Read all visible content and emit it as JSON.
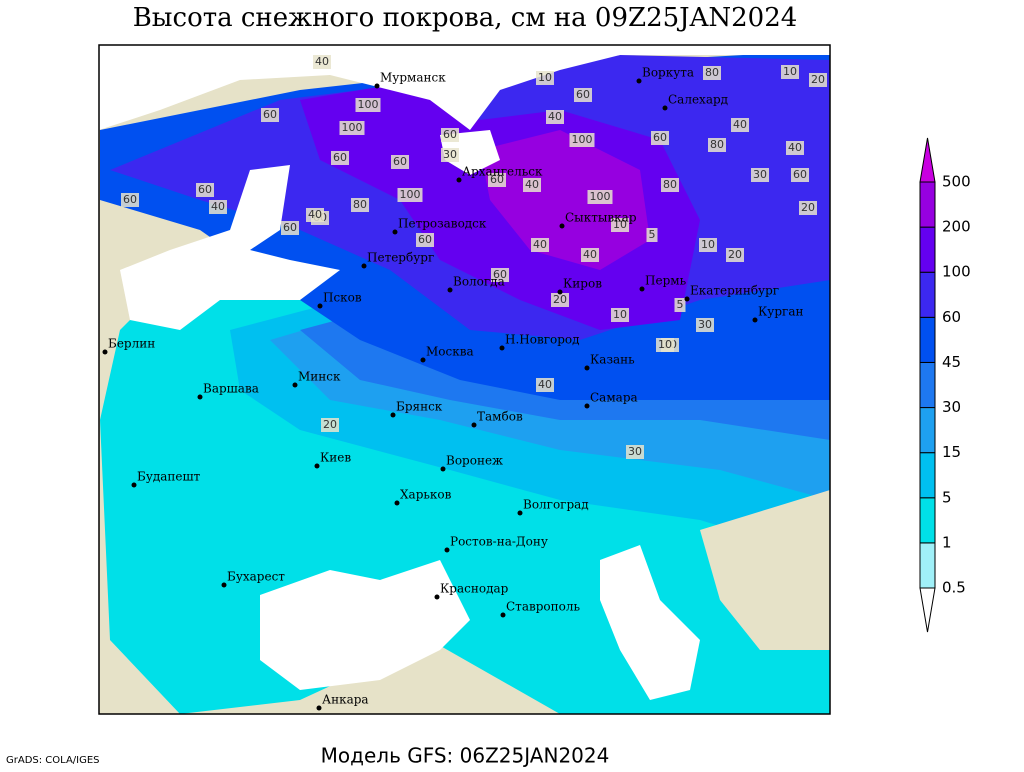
{
  "title": "Высота снежного покрова, см на 09Z25JAN2024",
  "subtitle": "Модель GFS: 06Z25JAN2024",
  "credit": "GrADS: COLA/IGES",
  "legend": {
    "levels": [
      0.5,
      1,
      5,
      15,
      30,
      45,
      60,
      100,
      200,
      500
    ],
    "colors": [
      "#ffffff",
      "#a0f0f8",
      "#00e0e8",
      "#00c0f0",
      "#1ea0f0",
      "#1e78f0",
      "#0050f0",
      "#3c28f0",
      "#6400f0",
      "#9600e0",
      "#c800e0"
    ]
  },
  "cities": [
    "Мурманск",
    "Воркута",
    "Салехард",
    "Архангельск",
    "Сыктывкар",
    "Петрозаводск",
    "Петербург",
    "Вологда",
    "Киров",
    "Пермь",
    "Екатеринбург",
    "Курган",
    "Псков",
    "Берлин",
    "Н.Новгород",
    "Москва",
    "Казань",
    "Минск",
    "Варшава",
    "Брянск",
    "Самара",
    "Тамбов",
    "Киев",
    "Воронеж",
    "Будапешт",
    "Харьков",
    "Волгоград",
    "Ростов-на-Дону",
    "Бухарест",
    "Краснодар",
    "Ставрополь",
    "Анкара"
  ],
  "contour_labels": [
    40,
    10,
    60,
    100,
    60,
    100,
    60,
    40,
    100,
    80,
    60,
    80,
    40,
    30,
    60,
    60,
    100,
    60,
    40,
    80,
    60,
    40,
    60,
    60,
    40,
    60,
    80,
    100,
    40,
    60,
    60,
    40,
    40,
    60,
    20,
    10,
    20,
    30,
    20,
    30,
    20,
    20,
    10,
    10,
    5,
    10,
    5,
    10,
    40,
    30,
    20
  ]
}
